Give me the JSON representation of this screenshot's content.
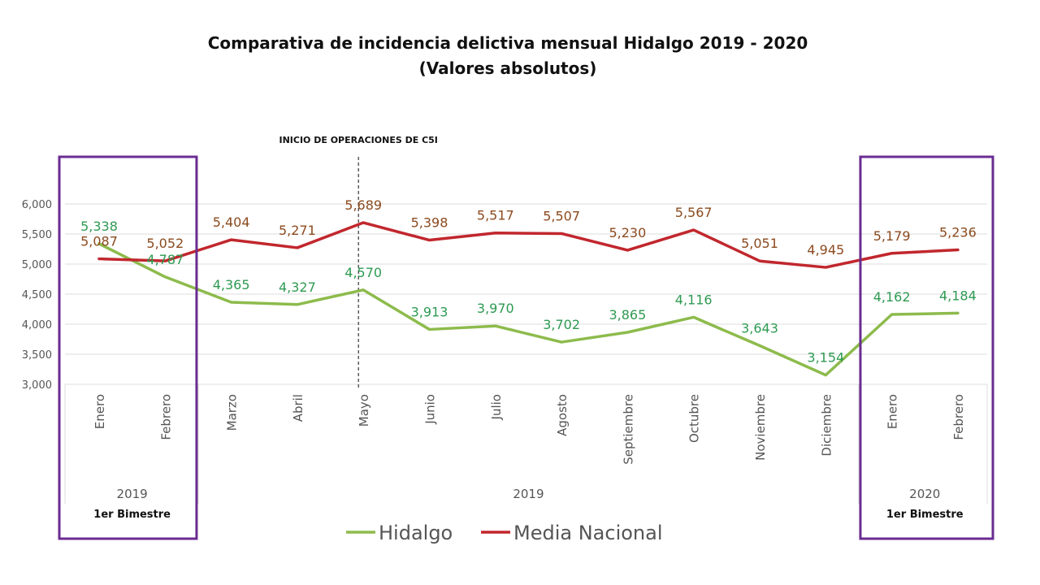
{
  "title": "Comparativa de incidencia delictiva mensual Hidalgo 2019 - 2020",
  "subtitle": "(Valores absolutos)",
  "annotation": "INICIO DE OPERACIONES DE C5I",
  "colors": {
    "hidalgo": "#8dbb4c",
    "hidalgo_label": "#2e9a52",
    "nacional": "#c1272d",
    "nacional_label": "#8b4a1e",
    "highlight_box": "#6a2c91",
    "grid": "#dcdcdc",
    "axis_text": "#555555"
  },
  "chart_data": {
    "type": "line",
    "categories": [
      "Enero",
      "Febrero",
      "Marzo",
      "Abril",
      "Mayo",
      "Junio",
      "Julio",
      "Agosto",
      "Septiembre",
      "Octubre",
      "Noviembre",
      "Diciembre",
      "Enero",
      "Febrero"
    ],
    "groups": [
      {
        "label": "2019",
        "sublabel": "1er Bimestre",
        "start": 0,
        "end": 1
      },
      {
        "label": "2019",
        "sublabel": "",
        "start": 2,
        "end": 11
      },
      {
        "label": "2020",
        "sublabel": "1er Bimestre",
        "start": 12,
        "end": 13
      }
    ],
    "series": [
      {
        "name": "Hidalgo",
        "values": [
          5338,
          4787,
          4365,
          4327,
          4570,
          3913,
          3970,
          3702,
          3865,
          4116,
          3643,
          3154,
          4162,
          4184
        ],
        "labels": [
          "5,338",
          "4,787",
          "4,365",
          "4,327",
          "4,570",
          "3,913",
          "3,970",
          "3,702",
          "3,865",
          "4,116",
          "3,643",
          "3,154",
          "4,162",
          "4,184"
        ]
      },
      {
        "name": "Media Nacional",
        "values": [
          5087,
          5052,
          5404,
          5271,
          5689,
          5398,
          5517,
          5507,
          5230,
          5567,
          5051,
          4945,
          5179,
          5236
        ],
        "labels": [
          "5,087",
          "5,052",
          "5,404",
          "5,271",
          "5,689",
          "5,398",
          "5,517",
          "5,507",
          "5,230",
          "5,567",
          "5,051",
          "4,945",
          "5,179",
          "5,236"
        ]
      }
    ],
    "ylim": [
      3000,
      6000
    ],
    "yticks": [
      3000,
      3500,
      4000,
      4500,
      5000,
      5500,
      6000
    ],
    "ytick_labels": [
      "3,000",
      "3,500",
      "4,000",
      "4,500",
      "5,000",
      "5,500",
      "6,000"
    ],
    "annotation_at_category": 4,
    "highlighted_categories": [
      [
        0,
        1
      ],
      [
        12,
        13
      ]
    ],
    "grid": true,
    "legend": "bottom-center"
  }
}
